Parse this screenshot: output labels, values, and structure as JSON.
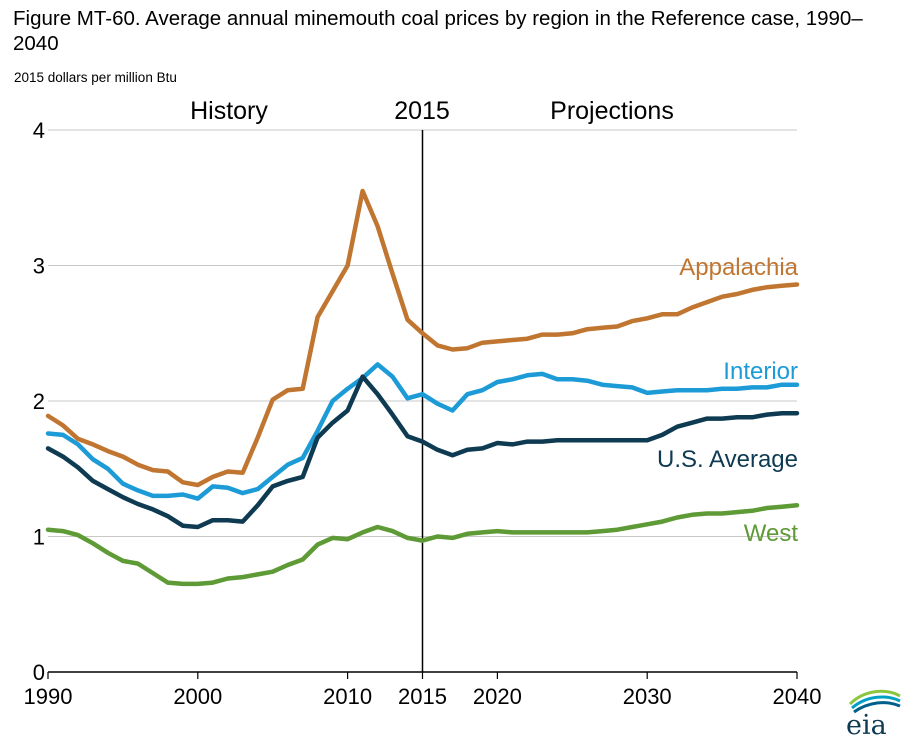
{
  "title": "Figure MT-60. Average annual minemouth coal prices by region in the Reference case, 1990–2040",
  "subtitle": "2015 dollars per million Btu",
  "periods": {
    "history": "History",
    "divider": "2015",
    "projections": "Projections"
  },
  "logo_text": "eia",
  "colors": {
    "Appalachia": "#c07630",
    "Interior": "#1d9bd7",
    "U.S. Average": "#0e3a52",
    "West": "#5e9a35",
    "grid": "#c8c8c8",
    "axis": "#000000"
  },
  "chart_data": {
    "type": "line",
    "title": "Figure MT-60. Average annual minemouth coal prices by region in the Reference case, 1990–2040",
    "ylabel": "2015 dollars per million Btu",
    "xlabel": "",
    "xlim": [
      1990,
      2040
    ],
    "ylim": [
      0,
      4
    ],
    "xticks": [
      1990,
      2000,
      2010,
      2015,
      2020,
      2030,
      2040
    ],
    "yticks": [
      0,
      1,
      2,
      3,
      4
    ],
    "grid": "horizontal",
    "divider_year": 2015,
    "x": [
      1990,
      1991,
      1992,
      1993,
      1994,
      1995,
      1996,
      1997,
      1998,
      1999,
      2000,
      2001,
      2002,
      2003,
      2004,
      2005,
      2006,
      2007,
      2008,
      2009,
      2010,
      2011,
      2012,
      2013,
      2014,
      2015,
      2016,
      2017,
      2018,
      2019,
      2020,
      2021,
      2022,
      2023,
      2024,
      2025,
      2026,
      2027,
      2028,
      2029,
      2030,
      2031,
      2032,
      2033,
      2034,
      2035,
      2036,
      2037,
      2038,
      2039,
      2040
    ],
    "series": [
      {
        "name": "Appalachia",
        "values": [
          1.89,
          1.82,
          1.72,
          1.68,
          1.63,
          1.59,
          1.53,
          1.49,
          1.48,
          1.4,
          1.38,
          1.44,
          1.48,
          1.47,
          1.73,
          2.01,
          2.08,
          2.09,
          2.62,
          2.81,
          3.0,
          3.55,
          3.29,
          2.94,
          2.6,
          2.5,
          2.41,
          2.38,
          2.39,
          2.43,
          2.44,
          2.45,
          2.46,
          2.49,
          2.49,
          2.5,
          2.53,
          2.54,
          2.55,
          2.59,
          2.61,
          2.64,
          2.64,
          2.69,
          2.73,
          2.77,
          2.79,
          2.82,
          2.84,
          2.85,
          2.86
        ]
      },
      {
        "name": "Interior",
        "values": [
          1.76,
          1.75,
          1.68,
          1.57,
          1.5,
          1.39,
          1.34,
          1.3,
          1.3,
          1.31,
          1.28,
          1.37,
          1.36,
          1.32,
          1.35,
          1.44,
          1.53,
          1.58,
          1.78,
          2.0,
          2.09,
          2.17,
          2.27,
          2.18,
          2.02,
          2.05,
          1.98,
          1.93,
          2.05,
          2.08,
          2.14,
          2.16,
          2.19,
          2.2,
          2.16,
          2.16,
          2.15,
          2.12,
          2.11,
          2.1,
          2.06,
          2.07,
          2.08,
          2.08,
          2.08,
          2.09,
          2.09,
          2.1,
          2.1,
          2.12,
          2.12
        ]
      },
      {
        "name": "U.S. Average",
        "values": [
          1.65,
          1.59,
          1.51,
          1.41,
          1.35,
          1.29,
          1.24,
          1.2,
          1.15,
          1.08,
          1.07,
          1.12,
          1.12,
          1.11,
          1.23,
          1.37,
          1.41,
          1.44,
          1.73,
          1.84,
          1.93,
          2.18,
          2.05,
          1.9,
          1.74,
          1.7,
          1.64,
          1.6,
          1.64,
          1.65,
          1.69,
          1.68,
          1.7,
          1.7,
          1.71,
          1.71,
          1.71,
          1.71,
          1.71,
          1.71,
          1.71,
          1.75,
          1.81,
          1.84,
          1.87,
          1.87,
          1.88,
          1.88,
          1.9,
          1.91,
          1.91
        ]
      },
      {
        "name": "West",
        "values": [
          1.05,
          1.04,
          1.01,
          0.95,
          0.88,
          0.82,
          0.8,
          0.73,
          0.66,
          0.65,
          0.65,
          0.66,
          0.69,
          0.7,
          0.72,
          0.74,
          0.79,
          0.83,
          0.94,
          0.99,
          0.98,
          1.03,
          1.07,
          1.04,
          0.99,
          0.97,
          1.0,
          0.99,
          1.02,
          1.03,
          1.04,
          1.03,
          1.03,
          1.03,
          1.03,
          1.03,
          1.03,
          1.04,
          1.05,
          1.07,
          1.09,
          1.11,
          1.14,
          1.16,
          1.17,
          1.17,
          1.18,
          1.19,
          1.21,
          1.22,
          1.23
        ]
      }
    ]
  }
}
